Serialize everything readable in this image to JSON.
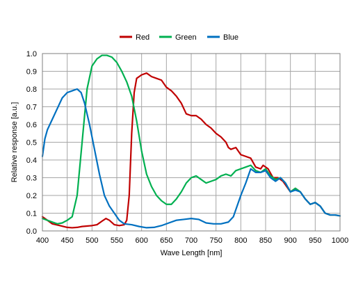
{
  "chart_data": {
    "type": "line",
    "title": "",
    "xlabel": "Wave Length [nm]",
    "ylabel": "Relative response [a.u.]",
    "xlim": [
      400,
      1000
    ],
    "ylim": [
      0,
      1.0
    ],
    "x_ticks": [
      "400",
      "450",
      "500",
      "550",
      "600",
      "650",
      "700",
      "750",
      "800",
      "850",
      "900",
      "950",
      "1000"
    ],
    "y_ticks": [
      "0.0",
      "0.1",
      "0.2",
      "0.3",
      "0.4",
      "0.5",
      "0.6",
      "0.7",
      "0.8",
      "0.9",
      "1.0"
    ],
    "grid": true,
    "legend_position": "top-center",
    "series": [
      {
        "name": "Red",
        "color": "#c00000",
        "points": [
          [
            400,
            0.08
          ],
          [
            410,
            0.06
          ],
          [
            420,
            0.04
          ],
          [
            435,
            0.03
          ],
          [
            450,
            0.02
          ],
          [
            460,
            0.018
          ],
          [
            470,
            0.02
          ],
          [
            480,
            0.025
          ],
          [
            500,
            0.03
          ],
          [
            510,
            0.035
          ],
          [
            520,
            0.055
          ],
          [
            528,
            0.07
          ],
          [
            535,
            0.06
          ],
          [
            545,
            0.035
          ],
          [
            555,
            0.03
          ],
          [
            565,
            0.035
          ],
          [
            570,
            0.06
          ],
          [
            575,
            0.2
          ],
          [
            580,
            0.55
          ],
          [
            585,
            0.78
          ],
          [
            590,
            0.86
          ],
          [
            600,
            0.88
          ],
          [
            610,
            0.89
          ],
          [
            620,
            0.87
          ],
          [
            630,
            0.86
          ],
          [
            640,
            0.85
          ],
          [
            650,
            0.81
          ],
          [
            660,
            0.79
          ],
          [
            670,
            0.76
          ],
          [
            680,
            0.72
          ],
          [
            685,
            0.69
          ],
          [
            690,
            0.66
          ],
          [
            700,
            0.65
          ],
          [
            710,
            0.65
          ],
          [
            720,
            0.63
          ],
          [
            730,
            0.6
          ],
          [
            740,
            0.58
          ],
          [
            750,
            0.55
          ],
          [
            760,
            0.53
          ],
          [
            770,
            0.5
          ],
          [
            775,
            0.47
          ],
          [
            780,
            0.46
          ],
          [
            790,
            0.47
          ],
          [
            800,
            0.43
          ],
          [
            810,
            0.42
          ],
          [
            820,
            0.41
          ],
          [
            830,
            0.36
          ],
          [
            840,
            0.35
          ],
          [
            845,
            0.37
          ],
          [
            855,
            0.35
          ],
          [
            865,
            0.3
          ],
          [
            875,
            0.3
          ],
          [
            885,
            0.28
          ],
          [
            900,
            0.22
          ],
          [
            910,
            0.24
          ],
          [
            920,
            0.22
          ],
          [
            930,
            0.18
          ],
          [
            940,
            0.15
          ],
          [
            950,
            0.16
          ],
          [
            960,
            0.14
          ],
          [
            970,
            0.1
          ],
          [
            980,
            0.09
          ],
          [
            990,
            0.09
          ],
          [
            1000,
            0.085
          ]
        ]
      },
      {
        "name": "Green",
        "color": "#00b050",
        "points": [
          [
            400,
            0.07
          ],
          [
            410,
            0.06
          ],
          [
            420,
            0.05
          ],
          [
            430,
            0.04
          ],
          [
            440,
            0.045
          ],
          [
            450,
            0.06
          ],
          [
            460,
            0.08
          ],
          [
            470,
            0.2
          ],
          [
            480,
            0.5
          ],
          [
            490,
            0.8
          ],
          [
            500,
            0.93
          ],
          [
            510,
            0.97
          ],
          [
            520,
            0.99
          ],
          [
            530,
            0.99
          ],
          [
            540,
            0.98
          ],
          [
            550,
            0.95
          ],
          [
            560,
            0.9
          ],
          [
            570,
            0.84
          ],
          [
            580,
            0.76
          ],
          [
            590,
            0.62
          ],
          [
            600,
            0.45
          ],
          [
            610,
            0.32
          ],
          [
            620,
            0.25
          ],
          [
            630,
            0.2
          ],
          [
            640,
            0.17
          ],
          [
            650,
            0.15
          ],
          [
            660,
            0.15
          ],
          [
            670,
            0.18
          ],
          [
            680,
            0.22
          ],
          [
            690,
            0.27
          ],
          [
            700,
            0.3
          ],
          [
            710,
            0.31
          ],
          [
            720,
            0.29
          ],
          [
            730,
            0.27
          ],
          [
            740,
            0.28
          ],
          [
            750,
            0.29
          ],
          [
            760,
            0.31
          ],
          [
            770,
            0.32
          ],
          [
            780,
            0.31
          ],
          [
            790,
            0.34
          ],
          [
            800,
            0.35
          ],
          [
            810,
            0.36
          ],
          [
            820,
            0.37
          ],
          [
            830,
            0.34
          ],
          [
            840,
            0.33
          ],
          [
            850,
            0.35
          ],
          [
            860,
            0.31
          ],
          [
            870,
            0.29
          ],
          [
            880,
            0.3
          ],
          [
            890,
            0.27
          ],
          [
            900,
            0.22
          ],
          [
            910,
            0.24
          ],
          [
            920,
            0.22
          ],
          [
            930,
            0.18
          ],
          [
            940,
            0.15
          ],
          [
            950,
            0.16
          ],
          [
            960,
            0.14
          ],
          [
            970,
            0.1
          ],
          [
            980,
            0.09
          ],
          [
            990,
            0.09
          ],
          [
            1000,
            0.085
          ]
        ]
      },
      {
        "name": "Blue",
        "color": "#0070c0",
        "points": [
          [
            400,
            0.42
          ],
          [
            405,
            0.52
          ],
          [
            410,
            0.57
          ],
          [
            420,
            0.63
          ],
          [
            430,
            0.69
          ],
          [
            440,
            0.75
          ],
          [
            450,
            0.78
          ],
          [
            460,
            0.79
          ],
          [
            470,
            0.8
          ],
          [
            478,
            0.78
          ],
          [
            485,
            0.72
          ],
          [
            495,
            0.6
          ],
          [
            505,
            0.46
          ],
          [
            515,
            0.32
          ],
          [
            525,
            0.2
          ],
          [
            535,
            0.14
          ],
          [
            545,
            0.1
          ],
          [
            555,
            0.06
          ],
          [
            565,
            0.04
          ],
          [
            580,
            0.035
          ],
          [
            595,
            0.025
          ],
          [
            610,
            0.018
          ],
          [
            625,
            0.02
          ],
          [
            640,
            0.03
          ],
          [
            655,
            0.045
          ],
          [
            670,
            0.06
          ],
          [
            685,
            0.065
          ],
          [
            700,
            0.07
          ],
          [
            715,
            0.065
          ],
          [
            730,
            0.045
          ],
          [
            745,
            0.04
          ],
          [
            760,
            0.04
          ],
          [
            775,
            0.05
          ],
          [
            785,
            0.08
          ],
          [
            790,
            0.12
          ],
          [
            800,
            0.2
          ],
          [
            810,
            0.27
          ],
          [
            820,
            0.35
          ],
          [
            830,
            0.33
          ],
          [
            840,
            0.33
          ],
          [
            850,
            0.34
          ],
          [
            860,
            0.3
          ],
          [
            870,
            0.28
          ],
          [
            880,
            0.3
          ],
          [
            890,
            0.27
          ],
          [
            900,
            0.22
          ],
          [
            910,
            0.23
          ],
          [
            920,
            0.22
          ],
          [
            930,
            0.18
          ],
          [
            940,
            0.15
          ],
          [
            950,
            0.16
          ],
          [
            960,
            0.14
          ],
          [
            970,
            0.1
          ],
          [
            980,
            0.09
          ],
          [
            990,
            0.09
          ],
          [
            1000,
            0.085
          ]
        ]
      }
    ]
  }
}
